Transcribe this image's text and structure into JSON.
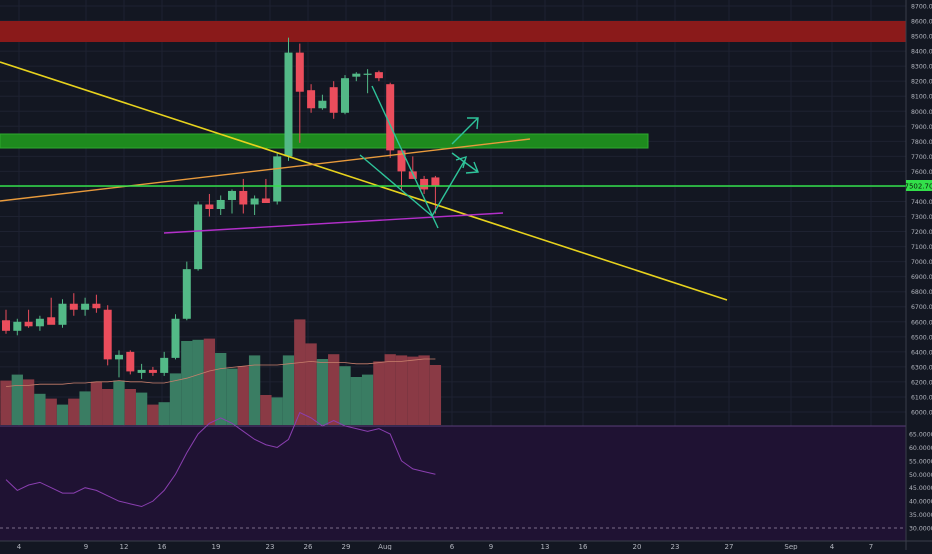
{
  "chart_data": [
    {
      "type": "candlestick",
      "title": "",
      "price_axis": {
        "ticks": [
          "8700.00",
          "8600.00",
          "8500.00",
          "8400.00",
          "8300.00",
          "8200.00",
          "8100.00",
          "8000.00",
          "7900.00",
          "7800.00",
          "7700.00",
          "7600.00",
          "7500.00",
          "7400.00",
          "7300.00",
          "7200.00",
          "7100.00",
          "7000.00",
          "6900.00",
          "6800.00",
          "6700.00",
          "6600.00",
          "6500.00",
          "6400.00",
          "6300.00",
          "6200.00",
          "6100.00",
          "6000.00"
        ],
        "range": [
          5915,
          8725
        ]
      },
      "time_axis": {
        "ticks": [
          "4",
          "9",
          "12",
          "16",
          "19",
          "23",
          "26",
          "29",
          "Aug",
          "6",
          "9",
          "13",
          "16",
          "20",
          "23",
          "27",
          "Sep",
          "4",
          "7"
        ]
      },
      "last_price_label": "7502.70",
      "colors": {
        "up": "#53b987",
        "down": "#eb4d5c",
        "volume_up": "#3a7d63",
        "volume_down": "#8a3a45"
      },
      "candles": [
        {
          "o": 6610,
          "h": 6680,
          "l": 6520,
          "c": 6540
        },
        {
          "o": 6540,
          "h": 6620,
          "l": 6510,
          "c": 6600
        },
        {
          "o": 6600,
          "h": 6680,
          "l": 6560,
          "c": 6570
        },
        {
          "o": 6570,
          "h": 6640,
          "l": 6540,
          "c": 6620
        },
        {
          "o": 6630,
          "h": 6760,
          "l": 6590,
          "c": 6580
        },
        {
          "o": 6580,
          "h": 6750,
          "l": 6560,
          "c": 6720
        },
        {
          "o": 6720,
          "h": 6790,
          "l": 6640,
          "c": 6680
        },
        {
          "o": 6680,
          "h": 6760,
          "l": 6640,
          "c": 6720
        },
        {
          "o": 6720,
          "h": 6780,
          "l": 6660,
          "c": 6690
        },
        {
          "o": 6680,
          "h": 6710,
          "l": 6310,
          "c": 6350
        },
        {
          "o": 6350,
          "h": 6410,
          "l": 6230,
          "c": 6380
        },
        {
          "o": 6400,
          "h": 6410,
          "l": 6250,
          "c": 6270
        },
        {
          "o": 6260,
          "h": 6320,
          "l": 6220,
          "c": 6280
        },
        {
          "o": 6280,
          "h": 6300,
          "l": 6240,
          "c": 6260
        },
        {
          "o": 6260,
          "h": 6400,
          "l": 6240,
          "c": 6360
        },
        {
          "o": 6360,
          "h": 6650,
          "l": 6350,
          "c": 6620
        },
        {
          "o": 6620,
          "h": 7000,
          "l": 6610,
          "c": 6950
        },
        {
          "o": 6950,
          "h": 7400,
          "l": 6940,
          "c": 7380
        },
        {
          "o": 7380,
          "h": 7450,
          "l": 7300,
          "c": 7350
        },
        {
          "o": 7350,
          "h": 7440,
          "l": 7310,
          "c": 7410
        },
        {
          "o": 7410,
          "h": 7480,
          "l": 7320,
          "c": 7470
        },
        {
          "o": 7470,
          "h": 7550,
          "l": 7320,
          "c": 7380
        },
        {
          "o": 7380,
          "h": 7440,
          "l": 7310,
          "c": 7420
        },
        {
          "o": 7420,
          "h": 7550,
          "l": 7390,
          "c": 7390
        },
        {
          "o": 7400,
          "h": 7720,
          "l": 7380,
          "c": 7700
        },
        {
          "o": 7700,
          "h": 8490,
          "l": 7670,
          "c": 8390
        },
        {
          "o": 8390,
          "h": 8450,
          "l": 7790,
          "c": 8130
        },
        {
          "o": 8140,
          "h": 8180,
          "l": 7990,
          "c": 8020
        },
        {
          "o": 8020,
          "h": 8110,
          "l": 8010,
          "c": 8070
        },
        {
          "o": 8160,
          "h": 8200,
          "l": 7950,
          "c": 7990
        },
        {
          "o": 7990,
          "h": 8240,
          "l": 7980,
          "c": 8220
        },
        {
          "o": 8230,
          "h": 8260,
          "l": 8200,
          "c": 8250
        },
        {
          "o": 8250,
          "h": 8280,
          "l": 8120,
          "c": 8250
        },
        {
          "o": 8260,
          "h": 8270,
          "l": 8200,
          "c": 8220
        },
        {
          "o": 8180,
          "h": 8190,
          "l": 7690,
          "c": 7740
        },
        {
          "o": 7740,
          "h": 7750,
          "l": 7480,
          "c": 7600
        },
        {
          "o": 7600,
          "h": 7700,
          "l": 7560,
          "c": 7550
        },
        {
          "o": 7550,
          "h": 7570,
          "l": 7450,
          "c": 7480
        },
        {
          "o": 7560,
          "h": 7570,
          "l": 7320,
          "c": 7500
        }
      ],
      "volume": {
        "values": [
          0.37,
          0.42,
          0.38,
          0.26,
          0.22,
          0.17,
          0.22,
          0.28,
          0.36,
          0.3,
          0.37,
          0.3,
          0.27,
          0.17,
          0.19,
          0.43,
          0.7,
          0.71,
          0.72,
          0.6,
          0.47,
          0.49,
          0.58,
          0.25,
          0.23,
          0.58,
          0.88,
          0.68,
          0.55,
          0.59,
          0.49,
          0.4,
          0.42,
          0.53,
          0.59,
          0.58,
          0.57,
          0.58,
          0.5
        ],
        "ma": [
          0.32,
          0.33,
          0.33,
          0.34,
          0.34,
          0.34,
          0.35,
          0.35,
          0.36,
          0.36,
          0.37,
          0.36,
          0.36,
          0.35,
          0.35,
          0.37,
          0.39,
          0.42,
          0.45,
          0.47,
          0.48,
          0.49,
          0.5,
          0.5,
          0.5,
          0.51,
          0.52,
          0.53,
          0.52,
          0.52,
          0.52,
          0.51,
          0.51,
          0.52,
          0.53,
          0.53,
          0.54,
          0.55,
          0.55
        ]
      }
    },
    {
      "type": "line",
      "title": "",
      "y_axis": {
        "ticks": [
          "65.0000",
          "60.0000",
          "55.0000",
          "50.0000",
          "45.0000",
          "40.0000",
          "35.0000",
          "30.0000"
        ],
        "range": [
          27.5,
          68
        ]
      },
      "level": 30,
      "series": [
        {
          "values": [
            48,
            44,
            46,
            47,
            45,
            43,
            43,
            45,
            44,
            42,
            40,
            39,
            38,
            40,
            44,
            50,
            58,
            65,
            69,
            71,
            69,
            66,
            63,
            61,
            60,
            63,
            73,
            71,
            68,
            70,
            68,
            67,
            66,
            67,
            65,
            55,
            52,
            51,
            50
          ]
        }
      ]
    }
  ]
}
